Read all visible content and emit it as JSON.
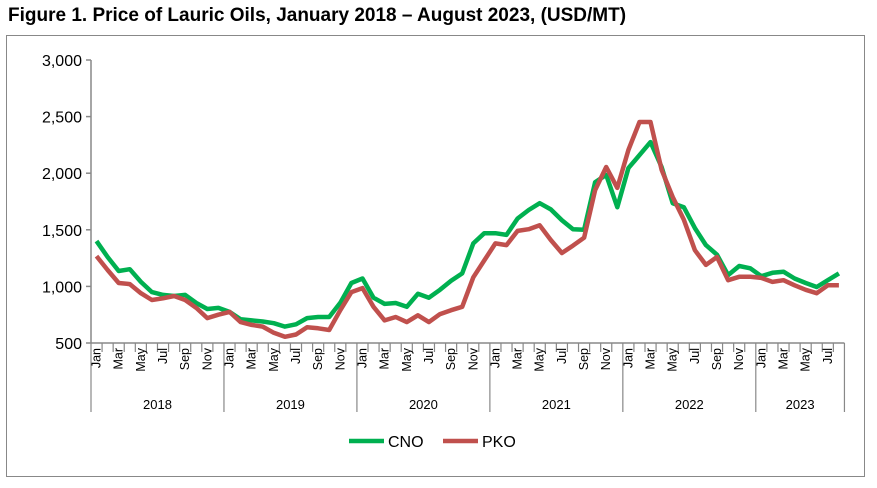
{
  "chart_data": {
    "type": "line",
    "title": "Figure 1. Price of Lauric Oils, January 2018 – August 2023, (USD/MT)",
    "xlabel": "",
    "ylabel": "",
    "ylim": [
      500,
      3000
    ],
    "yticks": [
      "3,000",
      "2,500",
      "2,000",
      "1,500",
      "1,000",
      "500"
    ],
    "ytick_values": [
      3000,
      2500,
      2000,
      1500,
      1000,
      500
    ],
    "years": [
      "2018",
      "2019",
      "2020",
      "2021",
      "2022",
      "2023"
    ],
    "month_labels": [
      "Jan",
      "Mar",
      "May",
      "Jul",
      "Sep",
      "Nov"
    ],
    "n_months": 68,
    "legend_position": "bottom",
    "series": [
      {
        "name": "CNO",
        "color": "#00b050",
        "values": [
          1400,
          1260,
          1136,
          1152,
          1040,
          950,
          925,
          915,
          925,
          853,
          800,
          810,
          775,
          710,
          700,
          690,
          675,
          645,
          665,
          720,
          730,
          730,
          855,
          1030,
          1070,
          900,
          845,
          853,
          820,
          935,
          900,
          970,
          1050,
          1115,
          1380,
          1470,
          1470,
          1455,
          1600,
          1675,
          1735,
          1680,
          1585,
          1505,
          1500,
          1920,
          1985,
          1700,
          2045,
          2160,
          2275,
          2055,
          1735,
          1700,
          1515,
          1365,
          1280,
          1100,
          1180,
          1160,
          1090,
          1120,
          1130,
          1070,
          1030,
          995,
          1055,
          1115
        ]
      },
      {
        "name": "PKO",
        "color": "#c0504d",
        "values": [
          1268,
          1145,
          1030,
          1020,
          940,
          880,
          895,
          915,
          880,
          810,
          720,
          750,
          775,
          685,
          660,
          645,
          590,
          555,
          575,
          640,
          630,
          615,
          790,
          950,
          985,
          820,
          700,
          730,
          685,
          745,
          685,
          755,
          790,
          820,
          1080,
          1230,
          1380,
          1365,
          1490,
          1505,
          1540,
          1410,
          1295,
          1360,
          1430,
          1850,
          2055,
          1870,
          2205,
          2452,
          2452,
          2030,
          1790,
          1590,
          1320,
          1190,
          1260,
          1055,
          1085,
          1085,
          1075,
          1040,
          1055,
          1010,
          970,
          940,
          1010,
          1010
        ]
      }
    ]
  }
}
